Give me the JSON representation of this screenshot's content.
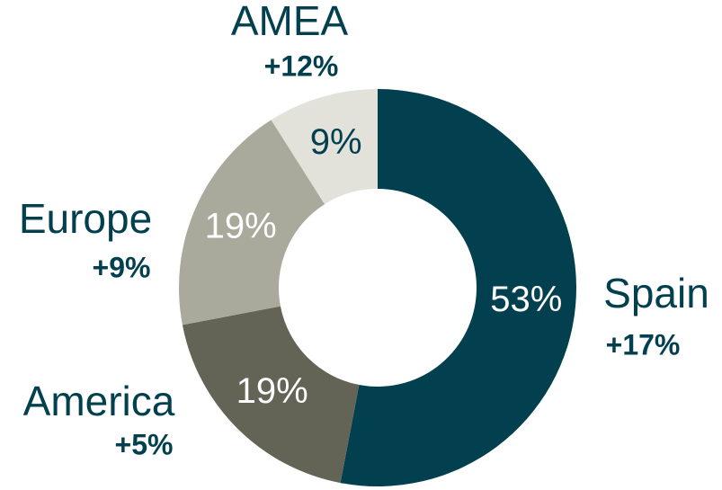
{
  "chart_data": {
    "type": "donut",
    "categories": [
      "Spain",
      "America",
      "Europe",
      "AMEA"
    ],
    "values": [
      53,
      19,
      19,
      9
    ],
    "value_labels": [
      "53%",
      "19%",
      "19%",
      "9%"
    ],
    "colors": [
      "#023f4f",
      "#636356",
      "#a9a99c",
      "#e3e2da"
    ],
    "growth": {
      "values": [
        17,
        5,
        9,
        12
      ],
      "value_labels": [
        "+17%",
        "+5%",
        "+9%",
        "+12%"
      ]
    }
  }
}
